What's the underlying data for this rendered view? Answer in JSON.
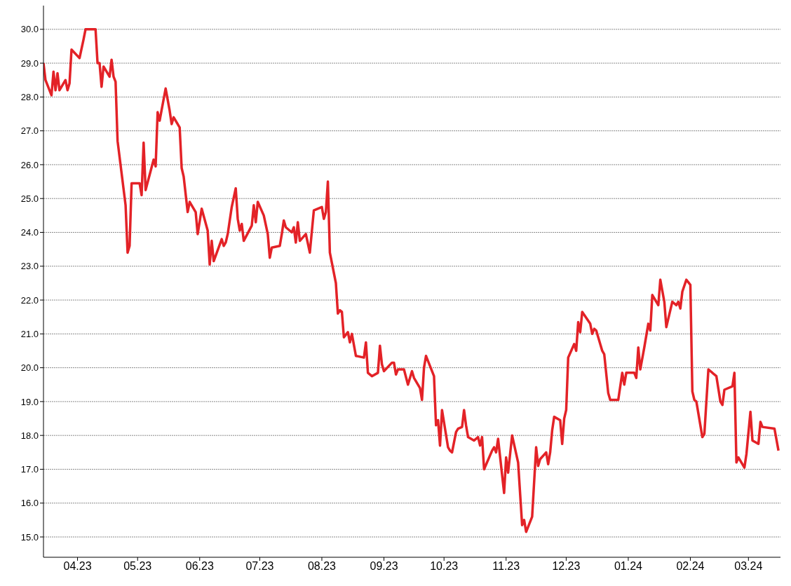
{
  "chart_data": {
    "type": "line",
    "xlim": [
      "2023-03-15",
      "2024-03-17"
    ],
    "ylim": [
      14.4,
      30.7
    ],
    "xticks": [
      {
        "value": "2023-04-01",
        "label": "04.23"
      },
      {
        "value": "2023-05-01",
        "label": "05.23"
      },
      {
        "value": "2023-06-01",
        "label": "06.23"
      },
      {
        "value": "2023-07-01",
        "label": "07.23"
      },
      {
        "value": "2023-08-01",
        "label": "08.23"
      },
      {
        "value": "2023-09-01",
        "label": "09.23"
      },
      {
        "value": "2023-10-01",
        "label": "10.23"
      },
      {
        "value": "2023-11-01",
        "label": "11.23"
      },
      {
        "value": "2023-12-01",
        "label": "12.23"
      },
      {
        "value": "2024-01-01",
        "label": "01.24"
      },
      {
        "value": "2024-02-01",
        "label": "02.24"
      },
      {
        "value": "2024-03-01",
        "label": "03.24"
      }
    ],
    "yticks": [
      {
        "value": 15,
        "label": "15.0"
      },
      {
        "value": 16,
        "label": "16.0"
      },
      {
        "value": 17,
        "label": "17.0"
      },
      {
        "value": 18,
        "label": "18.0"
      },
      {
        "value": 19,
        "label": "19.0"
      },
      {
        "value": 20,
        "label": "20.0"
      },
      {
        "value": 21,
        "label": "21.0"
      },
      {
        "value": 22,
        "label": "22.0"
      },
      {
        "value": 23,
        "label": "23.0"
      },
      {
        "value": 24,
        "label": "24.0"
      },
      {
        "value": 25,
        "label": "25.0"
      },
      {
        "value": 26,
        "label": "26.0"
      },
      {
        "value": 27,
        "label": "27.0"
      },
      {
        "value": 28,
        "label": "28.0"
      },
      {
        "value": 29,
        "label": "29.0"
      },
      {
        "value": 30,
        "label": "30.0"
      }
    ],
    "grid": "y",
    "marker": "none",
    "line_style": "solid",
    "x": [
      "2023-03-15",
      "2023-03-16",
      "2023-03-19",
      "2023-03-20",
      "2023-03-21",
      "2023-03-22",
      "2023-03-23",
      "2023-03-26",
      "2023-03-27",
      "2023-03-28",
      "2023-03-29",
      "2023-04-02",
      "2023-04-04",
      "2023-04-05",
      "2023-04-10",
      "2023-04-11",
      "2023-04-12",
      "2023-04-13",
      "2023-04-14",
      "2023-04-17",
      "2023-04-18",
      "2023-04-19",
      "2023-04-20",
      "2023-04-21",
      "2023-04-25",
      "2023-04-26",
      "2023-04-27",
      "2023-04-28",
      "2023-05-02",
      "2023-05-03",
      "2023-05-04",
      "2023-05-05",
      "2023-05-09",
      "2023-05-10",
      "2023-05-11",
      "2023-05-12",
      "2023-05-15",
      "2023-05-17",
      "2023-05-18",
      "2023-05-19",
      "2023-05-22",
      "2023-05-23",
      "2023-05-24",
      "2023-05-26",
      "2023-05-27",
      "2023-05-30",
      "2023-05-31",
      "2023-06-02",
      "2023-06-05",
      "2023-06-06",
      "2023-06-07",
      "2023-06-08",
      "2023-06-12",
      "2023-06-13",
      "2023-06-14",
      "2023-06-15",
      "2023-06-17",
      "2023-06-19",
      "2023-06-20",
      "2023-06-21",
      "2023-06-22",
      "2023-06-23",
      "2023-06-27",
      "2023-06-28",
      "2023-06-29",
      "2023-06-30",
      "2023-07-03",
      "2023-07-05",
      "2023-07-06",
      "2023-07-07",
      "2023-07-11",
      "2023-07-12",
      "2023-07-13",
      "2023-07-14",
      "2023-07-17",
      "2023-07-18",
      "2023-07-19",
      "2023-07-20",
      "2023-07-21",
      "2023-07-24",
      "2023-07-26",
      "2023-07-28",
      "2023-08-01",
      "2023-08-02",
      "2023-08-03",
      "2023-08-04",
      "2023-08-05",
      "2023-08-08",
      "2023-08-09",
      "2023-08-10",
      "2023-08-11",
      "2023-08-12",
      "2023-08-14",
      "2023-08-15",
      "2023-08-16",
      "2023-08-18",
      "2023-08-22",
      "2023-08-23",
      "2023-08-24",
      "2023-08-26",
      "2023-08-29",
      "2023-08-30",
      "2023-08-31",
      "2023-09-01",
      "2023-09-05",
      "2023-09-06",
      "2023-09-07",
      "2023-09-08",
      "2023-09-11",
      "2023-09-13",
      "2023-09-15",
      "2023-09-16",
      "2023-09-19",
      "2023-09-20",
      "2023-09-21",
      "2023-09-22",
      "2023-09-26",
      "2023-09-27",
      "2023-09-28",
      "2023-09-29",
      "2023-09-30",
      "2023-10-03",
      "2023-10-04",
      "2023-10-05",
      "2023-10-07",
      "2023-10-08",
      "2023-10-10",
      "2023-10-11",
      "2023-10-12",
      "2023-10-13",
      "2023-10-16",
      "2023-10-18",
      "2023-10-19",
      "2023-10-20",
      "2023-10-21",
      "2023-10-25",
      "2023-10-26",
      "2023-10-27",
      "2023-10-28",
      "2023-10-31",
      "2023-11-01",
      "2023-11-02",
      "2023-11-04",
      "2023-11-07",
      "2023-11-09",
      "2023-11-10",
      "2023-11-11",
      "2023-11-14",
      "2023-11-16",
      "2023-11-17",
      "2023-11-18",
      "2023-11-21",
      "2023-11-22",
      "2023-11-23",
      "2023-11-24",
      "2023-11-25",
      "2023-11-28",
      "2023-11-29",
      "2023-11-30",
      "2023-12-01",
      "2023-12-02",
      "2023-12-05",
      "2023-12-06",
      "2023-12-07",
      "2023-12-08",
      "2023-12-09",
      "2023-12-13",
      "2023-12-14",
      "2023-12-15",
      "2023-12-16",
      "2023-12-19",
      "2023-12-20",
      "2023-12-22",
      "2023-12-23",
      "2023-12-27",
      "2023-12-29",
      "2023-12-30",
      "2023-12-31",
      "2024-01-04",
      "2024-01-05",
      "2024-01-06",
      "2024-01-07",
      "2024-01-09",
      "2024-01-11",
      "2024-01-12",
      "2024-01-13",
      "2024-01-16",
      "2024-01-17",
      "2024-01-19",
      "2024-01-20",
      "2024-01-23",
      "2024-01-25",
      "2024-01-26",
      "2024-01-27",
      "2024-01-28",
      "2024-01-30",
      "2024-02-01",
      "2024-02-02",
      "2024-02-03",
      "2024-02-04",
      "2024-02-07",
      "2024-02-08",
      "2024-02-10",
      "2024-02-14",
      "2024-02-16",
      "2024-02-17",
      "2024-02-18",
      "2024-02-22",
      "2024-02-23",
      "2024-02-24",
      "2024-02-25",
      "2024-02-28",
      "2024-02-29",
      "2024-03-02",
      "2024-03-03",
      "2024-03-06",
      "2024-03-07",
      "2024-03-08",
      "2024-03-14",
      "2024-03-16"
    ],
    "series": [
      {
        "color": "#e32227",
        "values": [
          29.0,
          28.5,
          28.05,
          28.75,
          28.2,
          28.7,
          28.2,
          28.5,
          28.2,
          28.4,
          29.4,
          29.15,
          29.7,
          30.0,
          30.0,
          29.0,
          29.0,
          28.3,
          28.9,
          28.6,
          29.1,
          28.6,
          28.45,
          26.7,
          24.8,
          23.4,
          23.6,
          25.45,
          25.45,
          25.1,
          26.65,
          25.25,
          26.15,
          25.95,
          27.55,
          27.3,
          28.25,
          27.6,
          27.2,
          27.4,
          27.1,
          25.9,
          25.65,
          24.6,
          24.9,
          24.6,
          23.95,
          24.7,
          24.05,
          23.05,
          23.75,
          23.15,
          23.8,
          23.6,
          23.7,
          23.95,
          24.75,
          25.3,
          24.4,
          24.05,
          24.25,
          23.75,
          24.2,
          24.8,
          24.3,
          24.9,
          24.5,
          23.95,
          23.25,
          23.55,
          23.6,
          23.95,
          24.35,
          24.15,
          24.0,
          24.15,
          23.7,
          24.3,
          23.75,
          23.95,
          23.4,
          24.65,
          24.75,
          24.4,
          24.6,
          25.5,
          23.4,
          22.5,
          21.6,
          21.7,
          21.65,
          20.9,
          21.05,
          20.75,
          21.0,
          20.35,
          20.3,
          20.75,
          19.85,
          19.75,
          19.85,
          20.65,
          20.1,
          19.9,
          20.15,
          20.15,
          19.8,
          19.95,
          19.95,
          19.5,
          19.9,
          19.7,
          19.4,
          19.05,
          20.0,
          20.35,
          19.75,
          18.3,
          18.45,
          17.7,
          18.75,
          17.65,
          17.55,
          17.5,
          18.1,
          18.2,
          18.25,
          18.75,
          18.3,
          17.95,
          17.85,
          17.95,
          17.7,
          17.95,
          17.0,
          17.55,
          17.65,
          17.5,
          17.9,
          16.3,
          17.35,
          16.9,
          18.0,
          17.2,
          15.35,
          15.5,
          15.15,
          15.6,
          17.65,
          17.1,
          17.3,
          17.5,
          17.15,
          17.5,
          18.15,
          18.55,
          18.45,
          17.75,
          18.5,
          18.75,
          20.3,
          20.7,
          20.5,
          21.35,
          21.05,
          21.65,
          21.3,
          21.0,
          21.15,
          21.1,
          20.5,
          20.4,
          19.25,
          19.05,
          19.05,
          19.85,
          19.5,
          19.85,
          19.85,
          19.7,
          20.6,
          19.95,
          20.6,
          21.3,
          21.1,
          22.15,
          21.85,
          22.6,
          21.95,
          21.2,
          21.95,
          21.85,
          21.95,
          21.75,
          22.25,
          22.6,
          22.45,
          19.3,
          19.05,
          19.0,
          17.95,
          18.05,
          19.95,
          19.75,
          19.0,
          18.9,
          19.35,
          19.45,
          19.85,
          17.2,
          17.35,
          17.05,
          17.45,
          18.7,
          17.85,
          17.75,
          18.4,
          18.25,
          18.2,
          17.55
        ]
      }
    ]
  }
}
